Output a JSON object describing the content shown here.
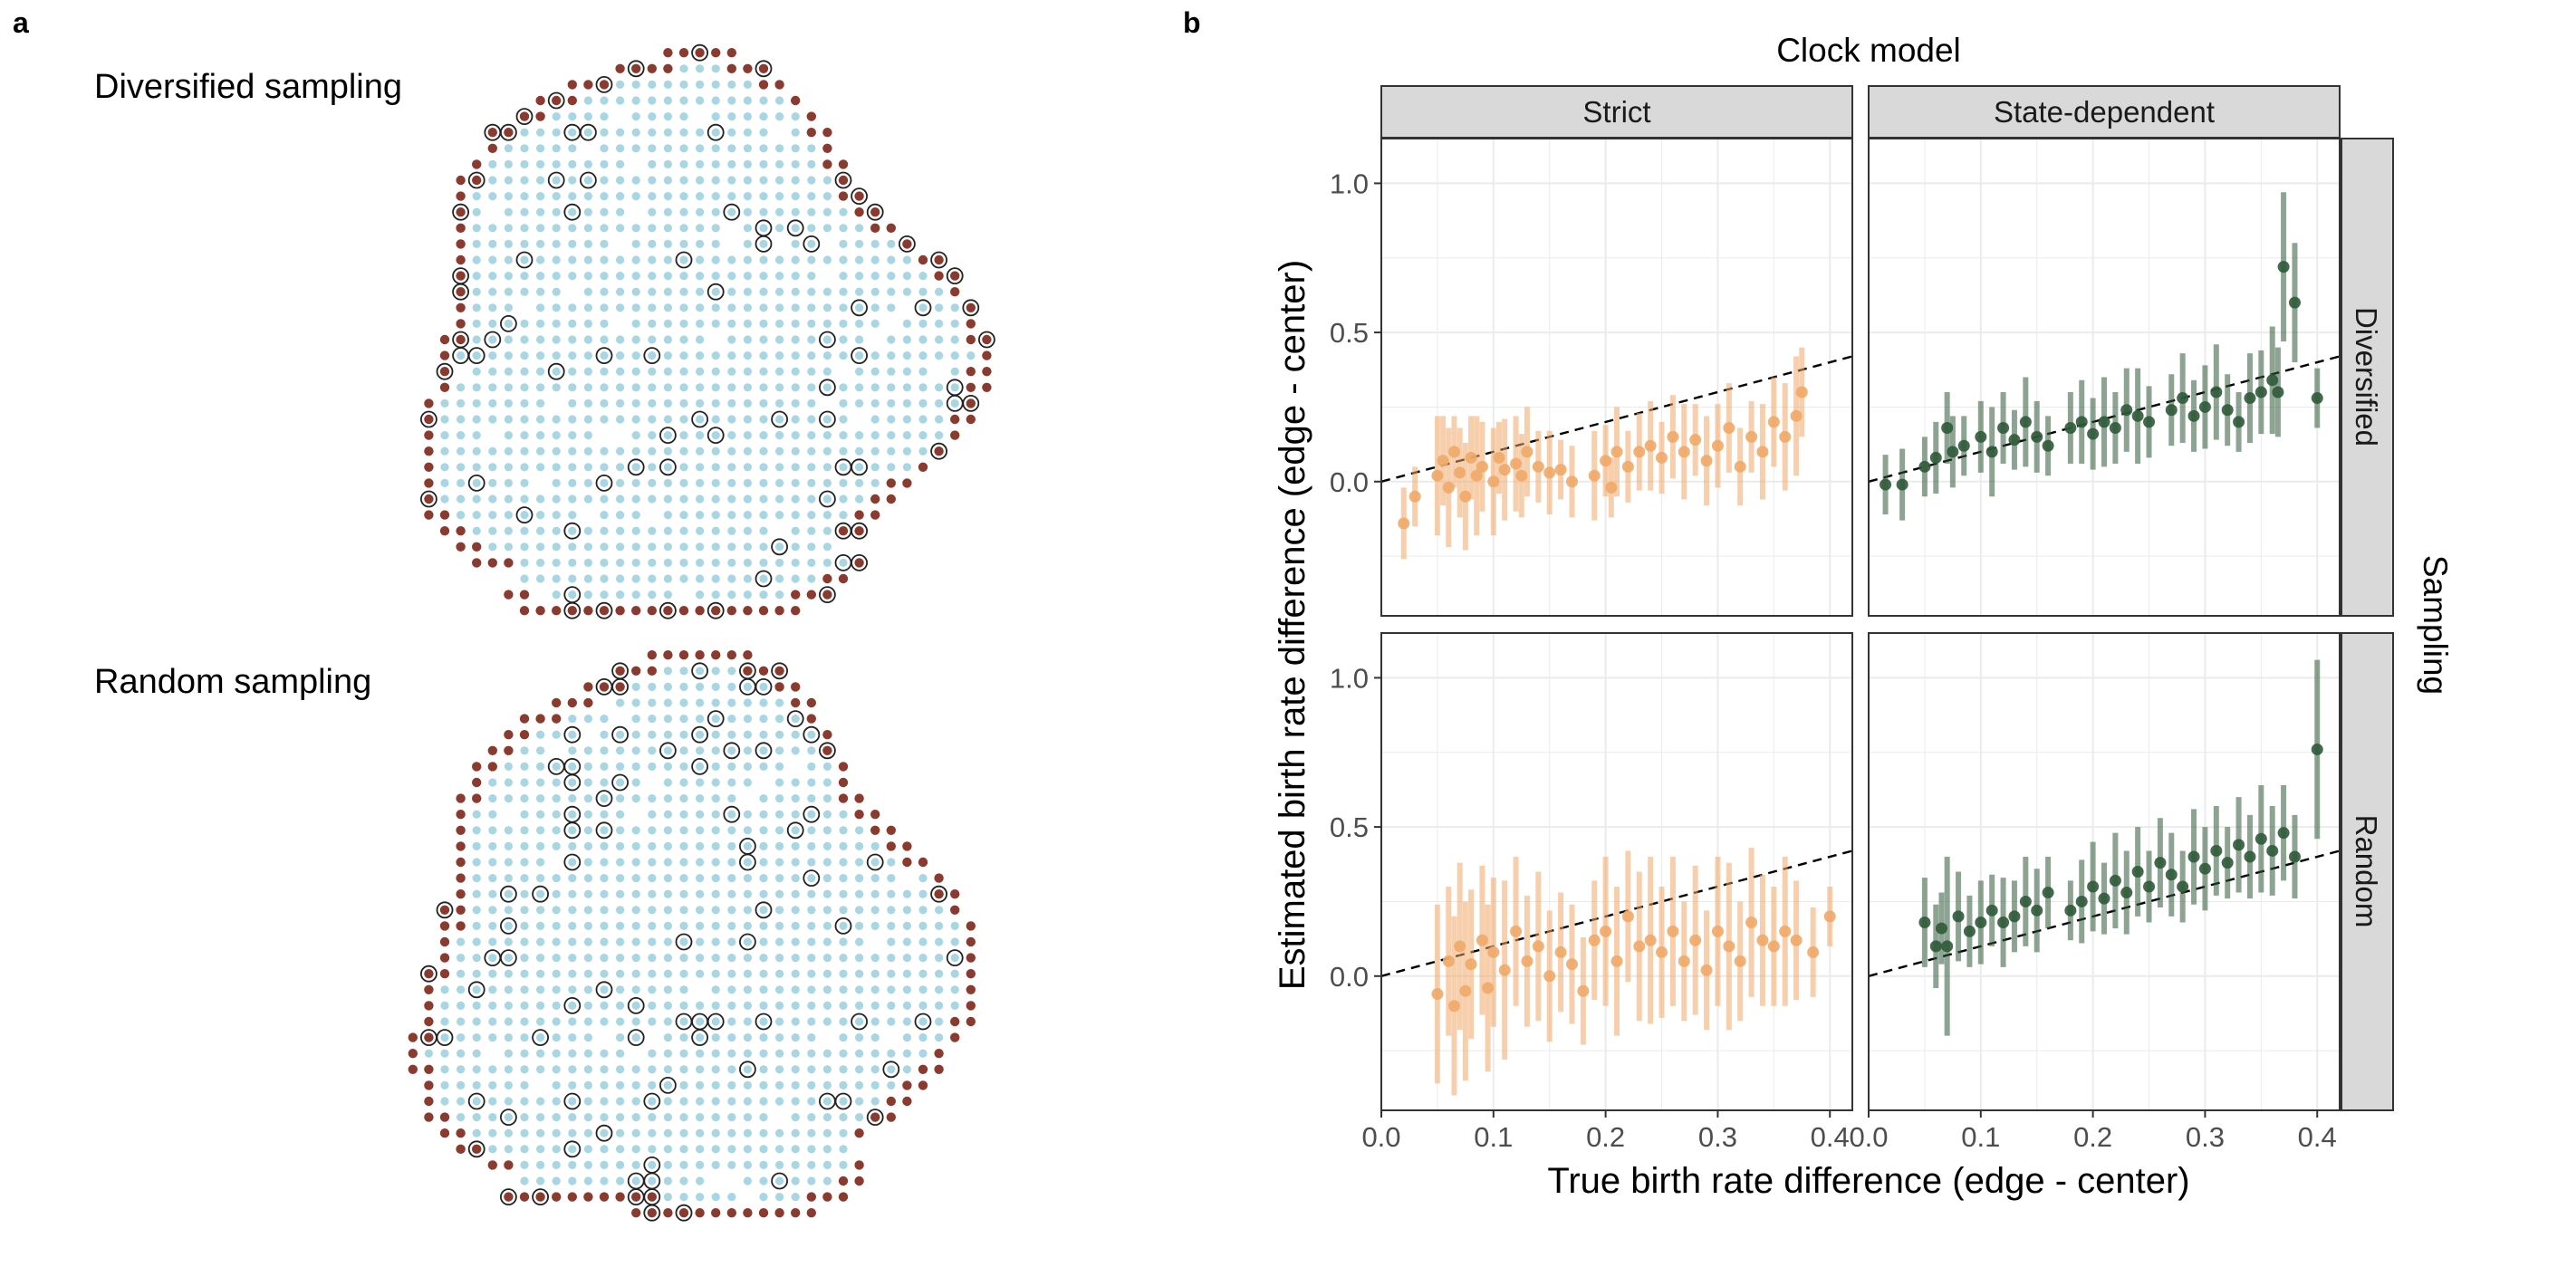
{
  "panel_a": {
    "label": "a",
    "top_title": "Diversified sampling",
    "bottom_title": "Random sampling",
    "colors": {
      "edge": "#8b3a2f",
      "center": "#a8d6e2",
      "sampled_ring": "#222222"
    }
  },
  "chart_data": {
    "type": "scatter",
    "panel_label": "b",
    "title": "Clock model",
    "xlabel": "True birth rate difference (edge - center)",
    "ylabel": "Estimated birth rate difference (edge - center)",
    "row_strip_title": "Sampling",
    "columns": [
      "Strict",
      "State-dependent"
    ],
    "rows": [
      "Diversified",
      "Random"
    ],
    "xlim": [
      0,
      0.42
    ],
    "ylim": [
      -0.45,
      1.15
    ],
    "x_ticks": [
      0.0,
      0.1,
      0.2,
      0.3,
      0.4
    ],
    "x_tick_labels": [
      "0.0",
      "0.1",
      "0.2",
      "0.3",
      "0.4"
    ],
    "y_ticks": [
      0.0,
      0.5,
      1.0
    ],
    "y_tick_labels": [
      "0.0",
      "0.5",
      "1.0"
    ],
    "grid": true,
    "reference_line": {
      "slope": 1,
      "intercept": 0,
      "style": "dashed"
    },
    "colors": {
      "strict": "#f0a868",
      "state_dependent": "#2f5a3a"
    },
    "facets": [
      {
        "row": "Diversified",
        "col": "Strict",
        "points": [
          [
            0.02,
            -0.14,
            0.12
          ],
          [
            0.03,
            -0.05,
            0.1
          ],
          [
            0.05,
            0.02,
            0.2
          ],
          [
            0.055,
            0.07,
            0.15
          ],
          [
            0.06,
            -0.02,
            0.2
          ],
          [
            0.065,
            0.1,
            0.12
          ],
          [
            0.07,
            0.03,
            0.15
          ],
          [
            0.075,
            -0.05,
            0.18
          ],
          [
            0.08,
            0.08,
            0.14
          ],
          [
            0.085,
            0.02,
            0.2
          ],
          [
            0.09,
            0.05,
            0.15
          ],
          [
            0.1,
            0.0,
            0.18
          ],
          [
            0.105,
            0.08,
            0.12
          ],
          [
            0.11,
            0.04,
            0.17
          ],
          [
            0.12,
            0.06,
            0.16
          ],
          [
            0.125,
            0.02,
            0.14
          ],
          [
            0.13,
            0.1,
            0.15
          ],
          [
            0.14,
            0.05,
            0.12
          ],
          [
            0.15,
            0.03,
            0.14
          ],
          [
            0.16,
            0.04,
            0.1
          ],
          [
            0.17,
            0.0,
            0.12
          ],
          [
            0.19,
            0.02,
            0.15
          ],
          [
            0.2,
            0.07,
            0.12
          ],
          [
            0.205,
            -0.02,
            0.1
          ],
          [
            0.21,
            0.1,
            0.15
          ],
          [
            0.22,
            0.05,
            0.12
          ],
          [
            0.23,
            0.1,
            0.13
          ],
          [
            0.24,
            0.12,
            0.15
          ],
          [
            0.25,
            0.08,
            0.12
          ],
          [
            0.26,
            0.15,
            0.14
          ],
          [
            0.27,
            0.1,
            0.16
          ],
          [
            0.28,
            0.14,
            0.12
          ],
          [
            0.29,
            0.07,
            0.15
          ],
          [
            0.3,
            0.12,
            0.14
          ],
          [
            0.31,
            0.18,
            0.15
          ],
          [
            0.32,
            0.05,
            0.13
          ],
          [
            0.33,
            0.15,
            0.12
          ],
          [
            0.34,
            0.1,
            0.16
          ],
          [
            0.35,
            0.2,
            0.15
          ],
          [
            0.36,
            0.15,
            0.18
          ],
          [
            0.37,
            0.22,
            0.2
          ],
          [
            0.375,
            0.3,
            0.15
          ]
        ]
      },
      {
        "row": "Diversified",
        "col": "State-dependent",
        "points": [
          [
            0.015,
            -0.01,
            0.1
          ],
          [
            0.03,
            -0.01,
            0.12
          ],
          [
            0.05,
            0.05,
            0.1
          ],
          [
            0.06,
            0.08,
            0.12
          ],
          [
            0.07,
            0.18,
            0.12
          ],
          [
            0.075,
            0.1,
            0.12
          ],
          [
            0.085,
            0.12,
            0.1
          ],
          [
            0.1,
            0.15,
            0.12
          ],
          [
            0.11,
            0.1,
            0.15
          ],
          [
            0.12,
            0.18,
            0.12
          ],
          [
            0.13,
            0.14,
            0.1
          ],
          [
            0.14,
            0.2,
            0.15
          ],
          [
            0.15,
            0.15,
            0.12
          ],
          [
            0.16,
            0.12,
            0.1
          ],
          [
            0.18,
            0.18,
            0.12
          ],
          [
            0.19,
            0.2,
            0.14
          ],
          [
            0.2,
            0.16,
            0.12
          ],
          [
            0.21,
            0.2,
            0.15
          ],
          [
            0.22,
            0.18,
            0.12
          ],
          [
            0.23,
            0.24,
            0.14
          ],
          [
            0.24,
            0.22,
            0.16
          ],
          [
            0.25,
            0.2,
            0.12
          ],
          [
            0.27,
            0.24,
            0.12
          ],
          [
            0.28,
            0.28,
            0.15
          ],
          [
            0.29,
            0.22,
            0.12
          ],
          [
            0.3,
            0.25,
            0.14
          ],
          [
            0.31,
            0.3,
            0.16
          ],
          [
            0.32,
            0.24,
            0.12
          ],
          [
            0.33,
            0.2,
            0.1
          ],
          [
            0.34,
            0.28,
            0.15
          ],
          [
            0.35,
            0.3,
            0.14
          ],
          [
            0.36,
            0.34,
            0.18
          ],
          [
            0.365,
            0.3,
            0.15
          ],
          [
            0.37,
            0.72,
            0.25
          ],
          [
            0.38,
            0.6,
            0.2
          ],
          [
            0.4,
            0.28,
            0.1
          ]
        ]
      },
      {
        "row": "Random",
        "col": "Strict",
        "points": [
          [
            0.05,
            -0.06,
            0.3
          ],
          [
            0.06,
            0.05,
            0.25
          ],
          [
            0.065,
            -0.1,
            0.3
          ],
          [
            0.07,
            0.1,
            0.28
          ],
          [
            0.075,
            -0.05,
            0.3
          ],
          [
            0.08,
            0.04,
            0.25
          ],
          [
            0.09,
            0.12,
            0.25
          ],
          [
            0.095,
            -0.04,
            0.28
          ],
          [
            0.1,
            0.08,
            0.25
          ],
          [
            0.11,
            0.02,
            0.3
          ],
          [
            0.12,
            0.15,
            0.25
          ],
          [
            0.13,
            0.05,
            0.22
          ],
          [
            0.14,
            0.1,
            0.25
          ],
          [
            0.15,
            0.0,
            0.22
          ],
          [
            0.16,
            0.08,
            0.2
          ],
          [
            0.17,
            0.04,
            0.2
          ],
          [
            0.18,
            -0.05,
            0.18
          ],
          [
            0.19,
            0.12,
            0.2
          ],
          [
            0.2,
            0.15,
            0.25
          ],
          [
            0.21,
            0.05,
            0.25
          ],
          [
            0.22,
            0.2,
            0.22
          ],
          [
            0.23,
            0.1,
            0.25
          ],
          [
            0.24,
            0.12,
            0.28
          ],
          [
            0.25,
            0.08,
            0.22
          ],
          [
            0.26,
            0.15,
            0.25
          ],
          [
            0.27,
            0.05,
            0.2
          ],
          [
            0.28,
            0.12,
            0.25
          ],
          [
            0.29,
            0.02,
            0.2
          ],
          [
            0.3,
            0.15,
            0.25
          ],
          [
            0.31,
            0.1,
            0.28
          ],
          [
            0.32,
            0.05,
            0.2
          ],
          [
            0.33,
            0.18,
            0.25
          ],
          [
            0.34,
            0.12,
            0.22
          ],
          [
            0.35,
            0.1,
            0.2
          ],
          [
            0.36,
            0.15,
            0.25
          ],
          [
            0.37,
            0.12,
            0.2
          ],
          [
            0.385,
            0.08,
            0.15
          ],
          [
            0.4,
            0.2,
            0.1
          ]
        ]
      },
      {
        "row": "Random",
        "col": "State-dependent",
        "points": [
          [
            0.05,
            0.18,
            0.15
          ],
          [
            0.06,
            0.1,
            0.14
          ],
          [
            0.065,
            0.16,
            0.12
          ],
          [
            0.07,
            0.1,
            0.3
          ],
          [
            0.08,
            0.2,
            0.15
          ],
          [
            0.09,
            0.15,
            0.12
          ],
          [
            0.1,
            0.18,
            0.14
          ],
          [
            0.11,
            0.22,
            0.12
          ],
          [
            0.12,
            0.18,
            0.15
          ],
          [
            0.13,
            0.2,
            0.12
          ],
          [
            0.14,
            0.25,
            0.15
          ],
          [
            0.15,
            0.22,
            0.14
          ],
          [
            0.16,
            0.28,
            0.12
          ],
          [
            0.18,
            0.22,
            0.1
          ],
          [
            0.19,
            0.25,
            0.14
          ],
          [
            0.2,
            0.3,
            0.15
          ],
          [
            0.21,
            0.26,
            0.12
          ],
          [
            0.22,
            0.32,
            0.16
          ],
          [
            0.23,
            0.28,
            0.14
          ],
          [
            0.24,
            0.35,
            0.15
          ],
          [
            0.25,
            0.3,
            0.12
          ],
          [
            0.26,
            0.38,
            0.15
          ],
          [
            0.27,
            0.34,
            0.14
          ],
          [
            0.28,
            0.3,
            0.12
          ],
          [
            0.29,
            0.4,
            0.16
          ],
          [
            0.3,
            0.36,
            0.14
          ],
          [
            0.31,
            0.42,
            0.15
          ],
          [
            0.32,
            0.38,
            0.12
          ],
          [
            0.33,
            0.44,
            0.16
          ],
          [
            0.34,
            0.4,
            0.14
          ],
          [
            0.35,
            0.46,
            0.18
          ],
          [
            0.36,
            0.42,
            0.15
          ],
          [
            0.37,
            0.48,
            0.16
          ],
          [
            0.38,
            0.4,
            0.14
          ],
          [
            0.4,
            0.76,
            0.3
          ]
        ]
      }
    ]
  }
}
